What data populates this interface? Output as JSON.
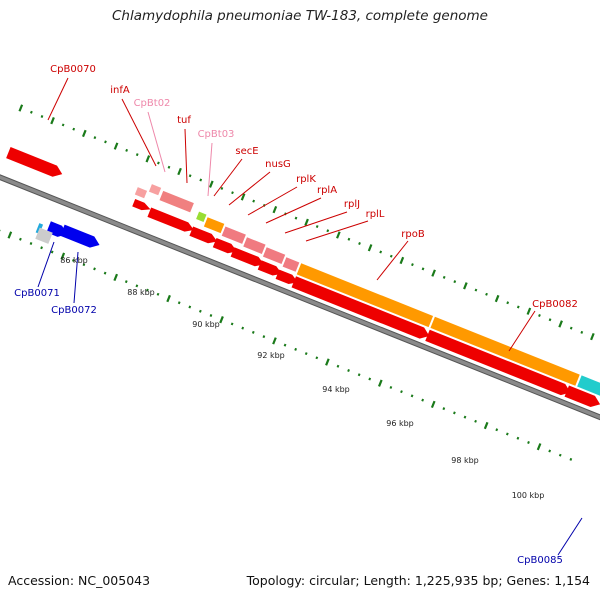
{
  "title": "Chlamydophila pneumoniae TW-183, complete genome",
  "footer": {
    "accession": "Accession: NC_005043",
    "summary": "Topology: circular; Length: 1,225,935 bp; Genes: 1,154"
  },
  "colors": {
    "backbone": "#8a8a8a",
    "tick": "#1a7a1a",
    "label_red": "#cc0000",
    "label_pink": "#ee88aa",
    "label_blue": "#0000aa"
  },
  "scale_labels": [
    {
      "kbp": 86,
      "label": "86 kbp"
    },
    {
      "kbp": 88,
      "label": "88 kbp"
    },
    {
      "kbp": 90,
      "label": "90 kbp"
    },
    {
      "kbp": 92,
      "label": "92 kbp"
    },
    {
      "kbp": 94,
      "label": "94 kbp"
    },
    {
      "kbp": 96,
      "label": "96 kbp"
    },
    {
      "kbp": 98,
      "label": "98 kbp"
    },
    {
      "kbp": 100,
      "label": "100 kbp"
    }
  ],
  "gene_labels": [
    {
      "id": "CpB0070",
      "text": "CpB0070",
      "color": "red"
    },
    {
      "id": "infA",
      "text": "infA",
      "color": "red"
    },
    {
      "id": "CpBt02",
      "text": "CpBt02",
      "color": "pink"
    },
    {
      "id": "tuf",
      "text": "tuf",
      "color": "red"
    },
    {
      "id": "CpBt03",
      "text": "CpBt03",
      "color": "pink"
    },
    {
      "id": "secE",
      "text": "secE",
      "color": "red"
    },
    {
      "id": "nusG",
      "text": "nusG",
      "color": "red"
    },
    {
      "id": "rplK",
      "text": "rplK",
      "color": "red"
    },
    {
      "id": "rplA",
      "text": "rplA",
      "color": "red"
    },
    {
      "id": "rplJ",
      "text": "rplJ",
      "color": "red"
    },
    {
      "id": "rplL",
      "text": "rplL",
      "color": "red"
    },
    {
      "id": "rpoB",
      "text": "rpoB",
      "color": "red"
    },
    {
      "id": "CpB0082",
      "text": "CpB0082",
      "color": "red"
    },
    {
      "id": "CpB0071",
      "text": "CpB0071",
      "color": "blue"
    },
    {
      "id": "CpB0072",
      "text": "CpB0072",
      "color": "blue"
    },
    {
      "id": "CpB0085",
      "text": "CpB0085",
      "color": "blue"
    }
  ]
}
